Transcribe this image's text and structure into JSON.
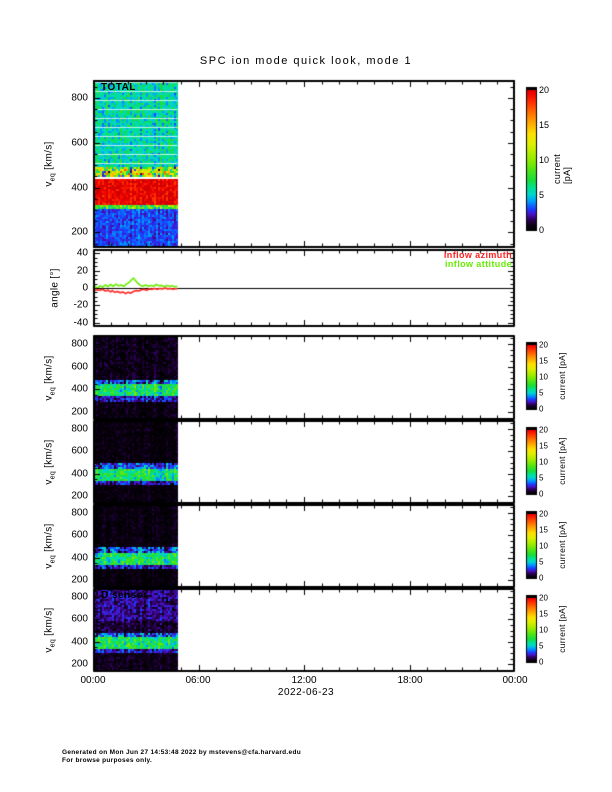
{
  "title": "SPC ion mode quick look, mode 1",
  "footer": {
    "line1": "Generated on Mon Jun 27 14:53:48 2022 by mstevens@cfa.harvard.edu",
    "line2": "For browse purposes only."
  },
  "time_axis": {
    "labels": [
      "00:00",
      "06:00",
      "12:00",
      "18:00",
      "00:00"
    ],
    "hours": [
      0,
      6,
      12,
      18,
      24
    ],
    "minor_step_hours": 1,
    "date": "2022-06-23"
  },
  "colorbar": {
    "label": "current [pA]",
    "ticks": [
      0,
      5,
      10,
      15,
      20
    ],
    "range": [
      0,
      20
    ]
  },
  "colors": {
    "frame": "#000000",
    "inflow_azimuth": "#ff2222",
    "inflow_attitude": "#66ee00",
    "spectrogram_max_red": "#e00000",
    "spectrogram_background_dark": "#000000"
  },
  "chart_data": [
    {
      "type": "heatmap",
      "name": "total-spectrogram",
      "label": "TOTAL",
      "ylabel": "v_eq [km/s]",
      "ylim": [
        130,
        880
      ],
      "yticks": [
        200,
        400,
        600,
        800
      ],
      "y_minor_step": 50,
      "xlim_hours": [
        0,
        24
      ],
      "data_end_hour": 4.8,
      "background": "#ffffff",
      "bands": [
        {
          "v": [
            500,
            880
          ],
          "value": 5.5,
          "noise": 1.6,
          "white_stripe_every_kms": 40
        },
        {
          "v": [
            455,
            500
          ],
          "value": 10,
          "noise": 6
        },
        {
          "v": [
            440,
            455
          ],
          "value": null
        },
        {
          "v": [
            330,
            440
          ],
          "value": 19.3,
          "noise": 1.3
        },
        {
          "v": [
            308,
            330
          ],
          "value": 8,
          "noise": 3
        },
        {
          "v": [
            130,
            308
          ],
          "value": 3,
          "noise": 0.9
        }
      ]
    },
    {
      "type": "line",
      "name": "angle-plot",
      "ylabel": "angle [°]",
      "ylim": [
        -45,
        45
      ],
      "yticks": [
        40,
        20,
        0,
        -20,
        -40
      ],
      "y_minor_step": 5,
      "zero_line": true,
      "data_end_hour": 4.8,
      "series": [
        {
          "name": "inflow azimuth",
          "color": "#ff2222",
          "points": [
            [
              0,
              -1.5
            ],
            [
              0.1,
              -3
            ],
            [
              0.25,
              -2
            ],
            [
              0.4,
              -2.5
            ],
            [
              0.55,
              -1.5
            ],
            [
              0.7,
              -3.5
            ],
            [
              0.85,
              -2.5
            ],
            [
              1.0,
              -4.5
            ],
            [
              1.1,
              -3
            ],
            [
              1.25,
              -5
            ],
            [
              1.4,
              -4
            ],
            [
              1.55,
              -5.5
            ],
            [
              1.7,
              -4.5
            ],
            [
              1.85,
              -6.5
            ],
            [
              2.0,
              -5
            ],
            [
              2.15,
              -6
            ],
            [
              2.3,
              -4
            ],
            [
              2.45,
              -3
            ],
            [
              2.6,
              -3.5
            ],
            [
              2.75,
              -2
            ],
            [
              2.9,
              -1.5
            ],
            [
              3.05,
              -2.5
            ],
            [
              3.2,
              -1
            ],
            [
              3.35,
              -1.5
            ],
            [
              3.5,
              -0.5
            ],
            [
              3.65,
              -1.5
            ],
            [
              3.8,
              -0.5
            ],
            [
              3.95,
              -1
            ],
            [
              4.1,
              0
            ],
            [
              4.25,
              -1
            ],
            [
              4.4,
              -0.5
            ],
            [
              4.55,
              -1.5
            ],
            [
              4.7,
              -0.5
            ],
            [
              4.8,
              -1
            ]
          ]
        },
        {
          "name": "inflow attitude",
          "color": "#66ee00",
          "points": [
            [
              0,
              0.5
            ],
            [
              0.12,
              2
            ],
            [
              0.25,
              -0.5
            ],
            [
              0.4,
              2.5
            ],
            [
              0.55,
              1
            ],
            [
              0.7,
              3.5
            ],
            [
              0.85,
              1.5
            ],
            [
              1.0,
              4
            ],
            [
              1.15,
              2
            ],
            [
              1.3,
              4.5
            ],
            [
              1.45,
              2.5
            ],
            [
              1.6,
              3.5
            ],
            [
              1.75,
              2
            ],
            [
              1.9,
              4.5
            ],
            [
              2.05,
              6.5
            ],
            [
              2.2,
              9.5
            ],
            [
              2.3,
              11.5
            ],
            [
              2.4,
              9
            ],
            [
              2.55,
              5.5
            ],
            [
              2.7,
              3
            ],
            [
              2.85,
              2
            ],
            [
              3.0,
              3.5
            ],
            [
              3.15,
              2
            ],
            [
              3.3,
              3
            ],
            [
              3.45,
              2
            ],
            [
              3.6,
              4
            ],
            [
              3.75,
              2.5
            ],
            [
              3.9,
              3
            ],
            [
              4.05,
              1.5
            ],
            [
              4.2,
              3
            ],
            [
              4.35,
              2
            ],
            [
              4.5,
              2.5
            ],
            [
              4.65,
              1.5
            ],
            [
              4.8,
              2
            ]
          ]
        }
      ]
    },
    {
      "type": "heatmap",
      "name": "sensor-1-spectrogram",
      "label": "",
      "ylabel": "v_eq [km/s]",
      "ylim": [
        130,
        880
      ],
      "yticks": [
        200,
        400,
        600,
        800
      ],
      "y_minor_step": 50,
      "xlim_hours": [
        0,
        24
      ],
      "data_end_hour": 4.8,
      "background": "#000000",
      "bands": [
        {
          "v": [
            500,
            880
          ],
          "value": 0.55,
          "noise": 0.7
        },
        {
          "v": [
            460,
            500
          ],
          "value": 3,
          "noise": 2
        },
        {
          "v": [
            350,
            460
          ],
          "value": 6.5,
          "noise": 2.2
        },
        {
          "v": [
            305,
            350
          ],
          "value": 2.2,
          "noise": 1.4
        },
        {
          "v": [
            130,
            305
          ],
          "value": 0.45,
          "noise": 0.6
        }
      ]
    },
    {
      "type": "heatmap",
      "name": "sensor-2-spectrogram",
      "label": "",
      "ylabel": "v_eq [km/s]",
      "ylim": [
        130,
        880
      ],
      "yticks": [
        200,
        400,
        600,
        800
      ],
      "y_minor_step": 50,
      "xlim_hours": [
        0,
        24
      ],
      "data_end_hour": 4.8,
      "background": "#000000",
      "bands": [
        {
          "v": [
            500,
            880
          ],
          "value": 0.4,
          "noise": 0.55
        },
        {
          "v": [
            460,
            500
          ],
          "value": 3,
          "noise": 2
        },
        {
          "v": [
            350,
            460
          ],
          "value": 6.5,
          "noise": 2.2
        },
        {
          "v": [
            305,
            350
          ],
          "value": 2.2,
          "noise": 1.4
        },
        {
          "v": [
            130,
            305
          ],
          "value": 0.35,
          "noise": 0.5
        }
      ]
    },
    {
      "type": "heatmap",
      "name": "sensor-3-spectrogram",
      "label": "",
      "ylabel": "v_eq [km/s]",
      "ylim": [
        130,
        880
      ],
      "yticks": [
        200,
        400,
        600,
        800
      ],
      "y_minor_step": 50,
      "xlim_hours": [
        0,
        24
      ],
      "data_end_hour": 4.8,
      "background": "#000000",
      "bands": [
        {
          "v": [
            500,
            880
          ],
          "value": 0.35,
          "noise": 0.5
        },
        {
          "v": [
            460,
            500
          ],
          "value": 3,
          "noise": 2
        },
        {
          "v": [
            350,
            460
          ],
          "value": 6.5,
          "noise": 2.2
        },
        {
          "v": [
            305,
            350
          ],
          "value": 2.2,
          "noise": 1.4
        },
        {
          "v": [
            130,
            305
          ],
          "value": 0.3,
          "noise": 0.45
        }
      ]
    },
    {
      "type": "heatmap",
      "name": "sensor-d-spectrogram",
      "label": "D sensor",
      "ylabel": "v_eq [km/s]",
      "ylim": [
        130,
        880
      ],
      "yticks": [
        200,
        400,
        600,
        800
      ],
      "y_minor_step": 50,
      "xlim_hours": [
        0,
        24
      ],
      "data_end_hour": 4.8,
      "background": "#000000",
      "bands": [
        {
          "v": [
            600,
            880
          ],
          "value": 1.7,
          "noise": 1.0
        },
        {
          "v": [
            480,
            600
          ],
          "value": 0.9,
          "noise": 0.8
        },
        {
          "v": [
            460,
            480
          ],
          "value": 3,
          "noise": 2
        },
        {
          "v": [
            350,
            460
          ],
          "value": 6.5,
          "noise": 2.2
        },
        {
          "v": [
            305,
            350
          ],
          "value": 2.2,
          "noise": 1.4
        },
        {
          "v": [
            130,
            305
          ],
          "value": 0.6,
          "noise": 0.6
        }
      ]
    }
  ]
}
